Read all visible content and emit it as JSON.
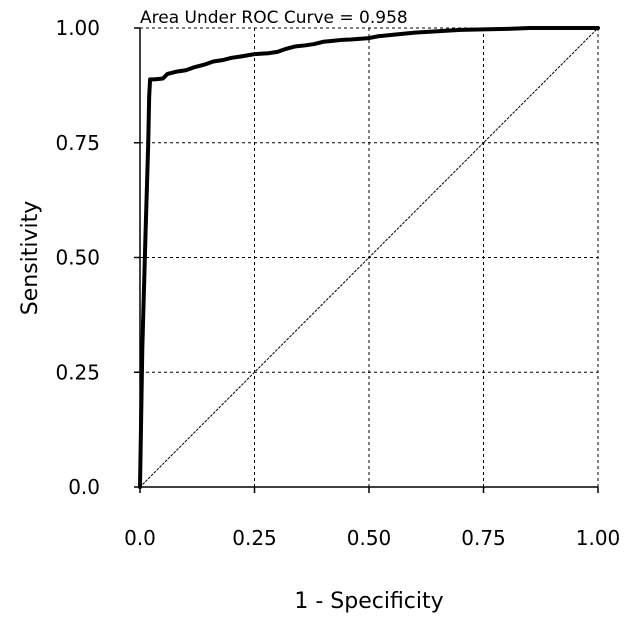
{
  "chart_data": {
    "type": "line",
    "title": "",
    "annotation": "Area Under ROC Curve =  0.958",
    "xlabel": "1 - Specificity",
    "ylabel": "Sensitivity",
    "xlim": [
      0,
      1
    ],
    "ylim": [
      0,
      1
    ],
    "x_ticks": [
      {
        "value": 0,
        "label": "0.0"
      },
      {
        "value": 0.25,
        "label": "0.25"
      },
      {
        "value": 0.5,
        "label": "0.50"
      },
      {
        "value": 0.75,
        "label": "0.75"
      },
      {
        "value": 1,
        "label": "1.00"
      }
    ],
    "y_ticks": [
      {
        "value": 0,
        "label": "0.0"
      },
      {
        "value": 0.25,
        "label": "0.25"
      },
      {
        "value": 0.5,
        "label": "0.50"
      },
      {
        "value": 0.75,
        "label": "0.75"
      },
      {
        "value": 1,
        "label": "1.00"
      }
    ],
    "grid": "dashed",
    "series": [
      {
        "style": "solid",
        "x": [
          0,
          0.005,
          0.012,
          0.018,
          0.02,
          0.022,
          0.03,
          0.04,
          0.05,
          0.06,
          0.08,
          0.1,
          0.12,
          0.14,
          0.16,
          0.18,
          0.2,
          0.22,
          0.25,
          0.28,
          0.3,
          0.32,
          0.34,
          0.36,
          0.38,
          0.4,
          0.42,
          0.44,
          0.46,
          0.5,
          0.52,
          0.55,
          0.6,
          0.65,
          0.7,
          0.8,
          0.85,
          0.9,
          1
        ],
        "y": [
          0,
          0.3,
          0.55,
          0.75,
          0.85,
          0.888,
          0.888,
          0.889,
          0.89,
          0.9,
          0.905,
          0.908,
          0.915,
          0.92,
          0.927,
          0.93,
          0.935,
          0.938,
          0.943,
          0.945,
          0.948,
          0.955,
          0.96,
          0.962,
          0.965,
          0.97,
          0.972,
          0.974,
          0.975,
          0.978,
          0.982,
          0.985,
          0.99,
          0.993,
          0.996,
          0.998,
          1,
          1,
          1
        ]
      },
      {
        "style": "dotted",
        "x": [
          0,
          1
        ],
        "y": [
          0,
          1
        ]
      }
    ]
  },
  "colors": {
    "curve": "#000000",
    "grid": "#000000",
    "axis": "#000000",
    "background": "#ffffff"
  }
}
